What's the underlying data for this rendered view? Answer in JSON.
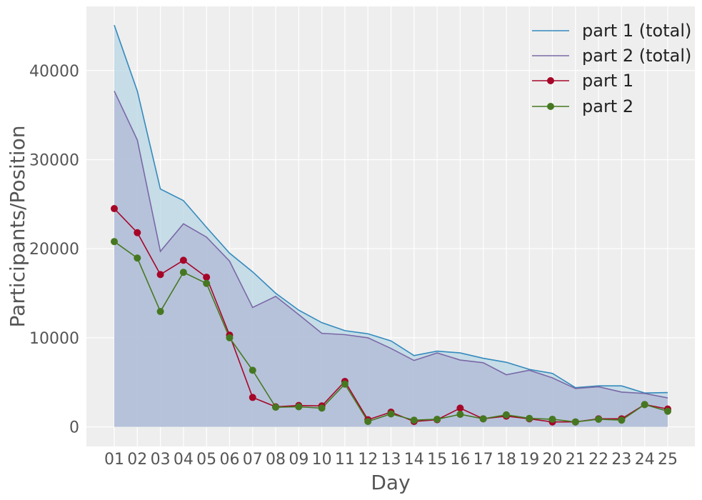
{
  "chart_data": {
    "type": "line",
    "title": "",
    "xlabel": "Day",
    "ylabel": "Participants/Position",
    "categories": [
      "01",
      "02",
      "03",
      "04",
      "05",
      "06",
      "07",
      "08",
      "09",
      "10",
      "11",
      "12",
      "13",
      "14",
      "15",
      "16",
      "17",
      "18",
      "19",
      "20",
      "21",
      "22",
      "23",
      "24",
      "25"
    ],
    "ylim": [
      -2200,
      47200
    ],
    "yticks": [
      0,
      10000,
      20000,
      30000,
      40000
    ],
    "yticks_labels": [
      "0",
      "10000",
      "20000",
      "30000",
      "40000"
    ],
    "grid": true,
    "legend_position": "top-right",
    "series": [
      {
        "name": "part 1 (total)",
        "color": "#348abd",
        "fill": "#b8d6e4",
        "markers": false,
        "values": [
          45100,
          37700,
          26700,
          25400,
          22400,
          19500,
          17400,
          15000,
          13100,
          11700,
          10800,
          10450,
          9650,
          8000,
          8500,
          8300,
          7700,
          7250,
          6450,
          6000,
          4400,
          4600,
          4600,
          3800,
          3850
        ]
      },
      {
        "name": "part 2 (total)",
        "color": "#7a68a6",
        "fill": "#b0b9d6",
        "markers": false,
        "values": [
          37700,
          32200,
          19700,
          22800,
          21300,
          18600,
          13400,
          14650,
          12600,
          10500,
          10350,
          10000,
          8800,
          7450,
          8300,
          7500,
          7200,
          5850,
          6350,
          5500,
          4300,
          4500,
          3900,
          3750,
          3250
        ]
      },
      {
        "name": "part 1",
        "color": "#a60628",
        "fill": "",
        "markers": true,
        "values": [
          24500,
          21800,
          17100,
          18700,
          16800,
          10300,
          3300,
          2250,
          2400,
          2350,
          5100,
          800,
          1650,
          600,
          800,
          2100,
          900,
          1200,
          900,
          550,
          550,
          900,
          900,
          2500,
          2000
        ]
      },
      {
        "name": "part 2",
        "color": "#467821",
        "fill": "",
        "markers": true,
        "values": [
          20800,
          18950,
          12950,
          17350,
          16100,
          10000,
          6350,
          2200,
          2250,
          2100,
          4800,
          600,
          1450,
          750,
          850,
          1400,
          900,
          1350,
          950,
          850,
          550,
          850,
          750,
          2500,
          1750
        ]
      }
    ]
  }
}
